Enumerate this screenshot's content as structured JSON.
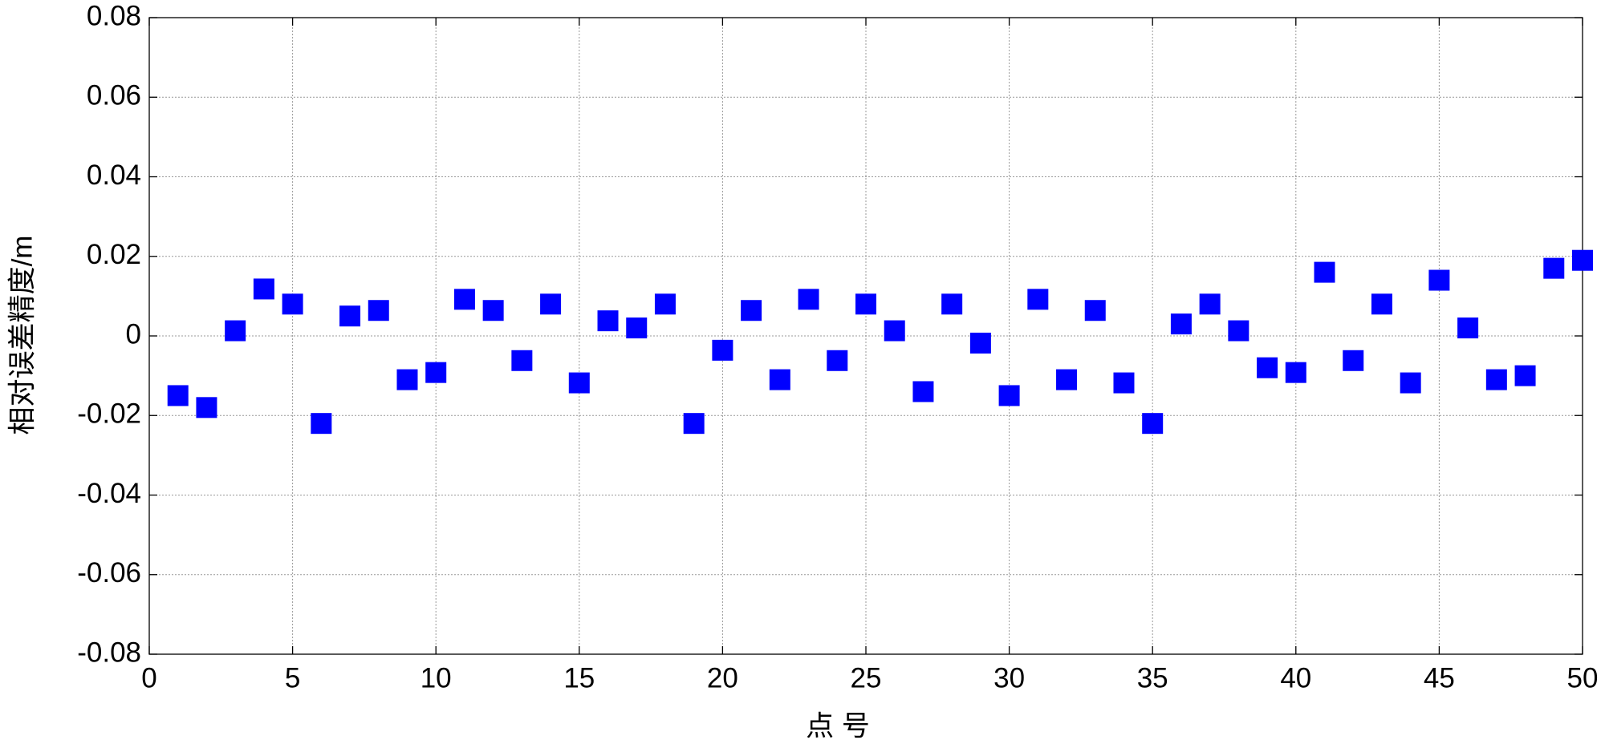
{
  "chart_data": {
    "type": "scatter",
    "x_label": "点 号",
    "y_label": "相对误差精度/m",
    "x": [
      1,
      2,
      3,
      4,
      5,
      6,
      7,
      8,
      9,
      10,
      11,
      12,
      13,
      14,
      15,
      16,
      17,
      18,
      19,
      20,
      21,
      22,
      23,
      24,
      25,
      26,
      27,
      28,
      29,
      30,
      31,
      32,
      33,
      34,
      35,
      36,
      37,
      38,
      39,
      40,
      41,
      42,
      43,
      44,
      45,
      46,
      47,
      48,
      49,
      50
    ],
    "series": [
      {
        "color": "#0000ff",
        "values": [
          -0.015,
          -0.018,
          0.0013,
          0.0118,
          0.008,
          -0.022,
          0.005,
          0.0064,
          -0.011,
          -0.0092,
          0.0092,
          0.0064,
          -0.0062,
          0.008,
          -0.0118,
          0.0038,
          0.002,
          0.008,
          -0.022,
          -0.0036,
          0.0064,
          -0.011,
          0.0092,
          -0.0062,
          0.008,
          0.0013,
          -0.014,
          0.008,
          -0.0018,
          -0.015,
          0.0092,
          -0.011,
          0.0064,
          -0.0118,
          -0.022,
          0.003,
          0.008,
          0.0013,
          -0.008,
          -0.0092,
          0.016,
          -0.0062,
          0.008,
          -0.0118,
          0.014,
          0.002,
          -0.011,
          -0.01,
          0.017,
          0.019
        ]
      }
    ],
    "xlim": [
      0,
      50
    ],
    "xticks": [
      0,
      5,
      10,
      15,
      20,
      25,
      30,
      35,
      40,
      45,
      50
    ],
    "ylim": [
      -0.08,
      0.08
    ],
    "yticks": [
      -0.08,
      -0.06,
      -0.04,
      -0.02,
      0,
      0.02,
      0.04,
      0.06,
      0.08
    ],
    "grid": true
  }
}
